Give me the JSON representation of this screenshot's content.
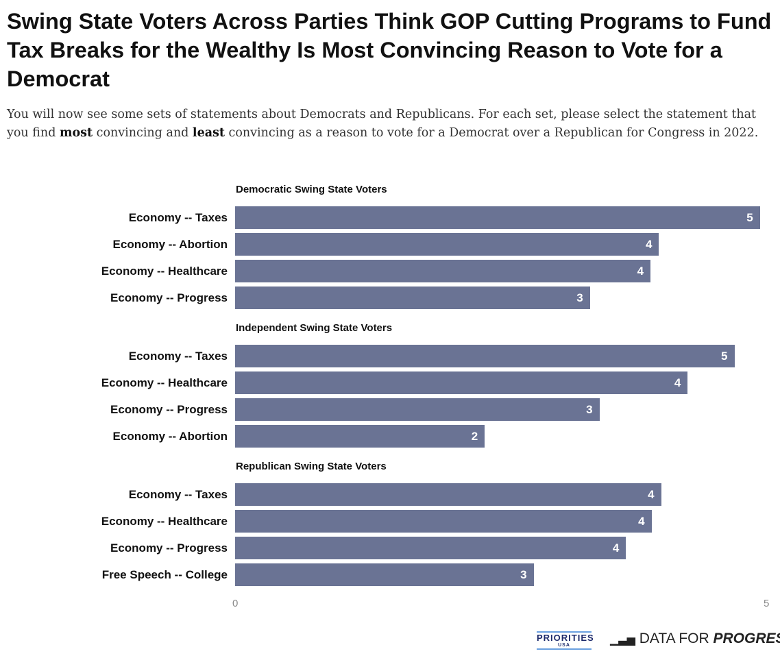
{
  "title": "Swing State Voters Across Parties Think GOP Cutting Programs to Fund Tax Breaks for the Wealthy Is Most Convincing Reason to Vote for a Democrat",
  "subtitle": {
    "part1": "You will now see some sets of statements about Democrats and Republicans. For each set, please select the statement that you find ",
    "most": "most",
    "part2": " convincing and ",
    "least": "least",
    "part3": " convincing as a reason to vote for a Democrat over a Republican for Congress in 2022."
  },
  "logos": {
    "priorities": "PRIORITIES",
    "priorities_sub": "USA",
    "dfp_plain": "DATA FOR ",
    "dfp_bold": "PROGRESS"
  },
  "chart_data": {
    "type": "bar",
    "orientation": "horizontal",
    "xlim": [
      0,
      5
    ],
    "x_ticks": [
      "0",
      "5"
    ],
    "bar_color": "#6a7394",
    "grid": false,
    "groups": [
      {
        "title": "Democratic Swing State Voters",
        "categories": [
          "Economy -- Taxes",
          "Economy -- Abortion",
          "Economy -- Healthcare",
          "Economy -- Progress"
        ],
        "values": [
          4.94,
          3.99,
          3.91,
          3.34
        ],
        "labels": [
          "5",
          "4",
          "4",
          "3"
        ]
      },
      {
        "title": "Independent Swing State Voters",
        "categories": [
          "Economy -- Taxes",
          "Economy -- Healthcare",
          "Economy -- Progress",
          "Economy -- Abortion"
        ],
        "values": [
          4.7,
          4.26,
          3.43,
          2.35
        ],
        "labels": [
          "5",
          "4",
          "3",
          "2"
        ]
      },
      {
        "title": "Republican Swing State Voters",
        "categories": [
          "Economy -- Taxes",
          "Economy -- Healthcare",
          "Economy -- Progress",
          "Free Speech -- College"
        ],
        "values": [
          4.01,
          3.92,
          3.68,
          2.81
        ],
        "labels": [
          "4",
          "4",
          "4",
          "3"
        ]
      }
    ]
  }
}
